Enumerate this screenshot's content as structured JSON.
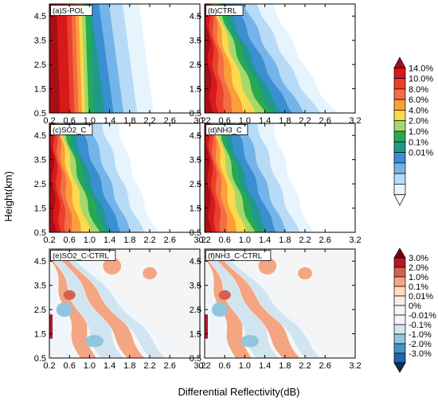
{
  "chart_data": {
    "type": "filled-contour",
    "ylabel": "Height(km)",
    "xlabel": "Differential Reflectivity(dB)",
    "x_ticks": [
      "0.2",
      "0.6",
      "1.0",
      "1.4",
      "1.8",
      "2.2",
      "2.6",
      "3.2"
    ],
    "y_ticks": [
      "0.5",
      "1.5",
      "2.5",
      "3.5",
      "4.5"
    ],
    "xlim": [
      0.2,
      3.2
    ],
    "ylim": [
      0.5,
      5.0
    ],
    "panels": [
      {
        "label": "(a)S-POL",
        "kind": "freq",
        "style": "spol"
      },
      {
        "label": "(b)CTRL",
        "kind": "freq",
        "style": "model",
        "spread": 1.0
      },
      {
        "label": "(c)SO2_C",
        "kind": "freq",
        "style": "model",
        "spread": 0.82
      },
      {
        "label": "(d)NH3_C",
        "kind": "freq",
        "style": "model",
        "spread": 0.82
      },
      {
        "label": "(e)SO2_C-CTRL",
        "kind": "diff"
      },
      {
        "label": "(f)NH3_C-CTRL",
        "kind": "diff"
      }
    ],
    "colorbar_freq": {
      "levels": [
        "14.0%",
        "10.0%",
        "8.0%",
        "6.0%",
        "4.0%",
        "2.0%",
        "1.0%",
        "0.1%",
        "0.01%"
      ],
      "colors": [
        "#a50f15",
        "#d7191c",
        "#e9412b",
        "#f46d43",
        "#fc9e3a",
        "#fdd94e",
        "#a6d96a",
        "#27a950",
        "#1f9a8a",
        "#3a8fd1",
        "#74b4ea",
        "#b7dbf6",
        "#e6f4fd",
        "#ffffff"
      ]
    },
    "colorbar_diff": {
      "levels": [
        "3.0%",
        "2.0%",
        "1.0%",
        "0.1%",
        "0.01%",
        "0%",
        "-0.01%",
        "-0.1%",
        "-1.0%",
        "-2.0%",
        "-3.0%"
      ],
      "colors": [
        "#7f0000",
        "#b2182b",
        "#d6604d",
        "#f4a582",
        "#fddbc7",
        "#fbeee6",
        "#f5f5f5",
        "#f0f5f9",
        "#d1e5f0",
        "#92c5de",
        "#4393c3",
        "#2166ac",
        "#053061"
      ]
    }
  }
}
